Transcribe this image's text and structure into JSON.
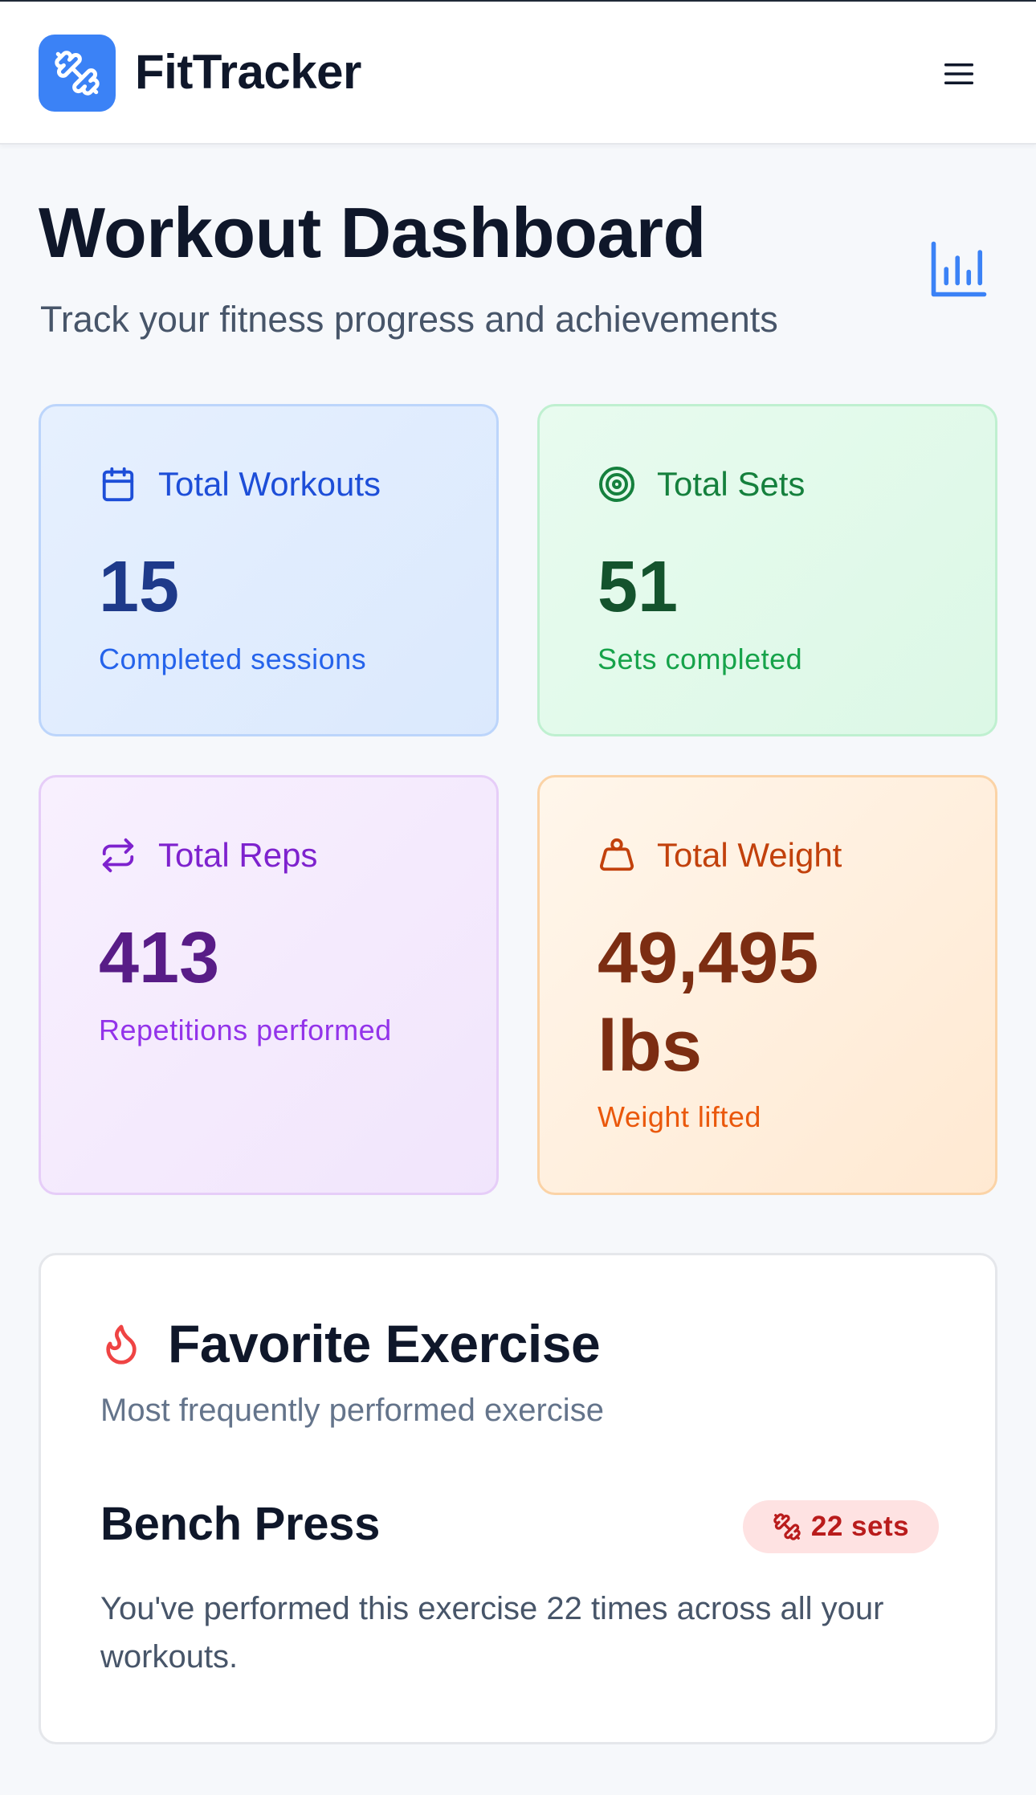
{
  "header": {
    "app_title": "FitTracker",
    "logo_icon": "dumbbell-icon",
    "menu_icon": "hamburger-menu-icon"
  },
  "page": {
    "title": "Workout Dashboard",
    "subtitle": "Track your fitness progress and achievements",
    "stats_icon": "bar-chart-icon"
  },
  "stats": {
    "workouts": {
      "label": "Total Workouts",
      "value": "15",
      "caption": "Completed sessions",
      "icon": "calendar-icon",
      "color": "#1d4ed8"
    },
    "sets": {
      "label": "Total Sets",
      "value": "51",
      "caption": "Sets completed",
      "icon": "target-icon",
      "color": "#15803d"
    },
    "reps": {
      "label": "Total Reps",
      "value": "413",
      "caption": "Repetitions performed",
      "icon": "repeat-icon",
      "color": "#7e22ce"
    },
    "weight": {
      "label": "Total Weight",
      "value_line1": "49,495",
      "value_line2": "lbs",
      "caption": "Weight lifted",
      "icon": "weight-icon",
      "color": "#c2410c"
    }
  },
  "favorite": {
    "title": "Favorite Exercise",
    "subtitle": "Most frequently performed exercise",
    "icon": "flame-icon",
    "exercise_name": "Bench Press",
    "badge": "22 sets",
    "badge_icon": "dumbbell-icon",
    "description": "You've performed this exercise 22 times across all your workouts."
  }
}
